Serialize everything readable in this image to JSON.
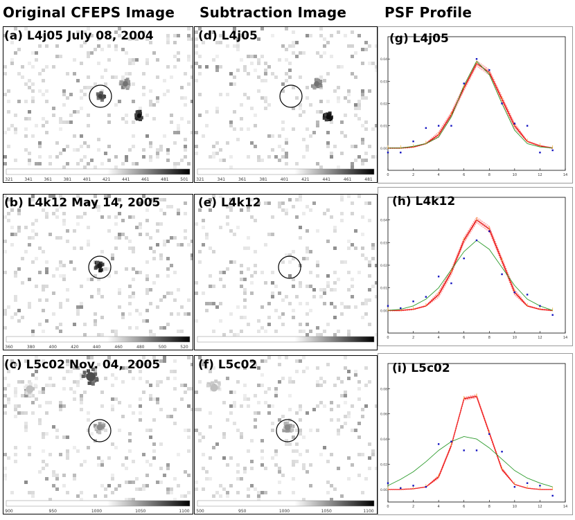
{
  "headers": {
    "original": "Original CFEPS Image",
    "subtraction": "Subtraction Image",
    "psf": "PSF Profile"
  },
  "panels": {
    "a": "(a) L4j05 July 08, 2004",
    "b": "(b) L4k12 May 14, 2005",
    "c": "(c) L5c02 Nov. 04, 2005",
    "d": "(d) L4j05",
    "e": "(e) L4k12",
    "f": "(f) L5c02",
    "g": "(g) L4j05",
    "h": "(h) L4k12",
    "i": "(i) L5c02"
  },
  "colorbars": {
    "a": [
      "321",
      "341",
      "361",
      "381",
      "401",
      "421",
      "441",
      "461",
      "481",
      "501"
    ],
    "b": [
      "360",
      "380",
      "400",
      "420",
      "440",
      "460",
      "480",
      "500",
      "520"
    ],
    "c": [
      "900",
      "950",
      "1000",
      "1050",
      "1100"
    ],
    "d": [
      "321",
      "341",
      "361",
      "381",
      "401",
      "421",
      "441",
      "461",
      "481"
    ],
    "f": [
      "500",
      "950",
      "1000",
      "1050",
      "1100"
    ]
  },
  "chart_data": [
    {
      "type": "line",
      "panel": "g",
      "xlim": [
        0,
        14
      ],
      "ylim": [
        -0.01,
        0.05
      ],
      "xticks": [
        "0",
        "2",
        "4",
        "6",
        "8",
        "10",
        "12",
        "14"
      ],
      "yticks": [
        "0.00",
        "0.01",
        "0.02",
        "0.03",
        "0.04"
      ],
      "x": [
        0,
        1,
        2,
        3,
        4,
        5,
        6,
        7,
        8,
        9,
        10,
        11,
        12,
        13
      ],
      "fit": [
        0.0,
        0.0,
        0.0005,
        0.002,
        0.006,
        0.015,
        0.027,
        0.038,
        0.034,
        0.022,
        0.01,
        0.003,
        0.001,
        0.0
      ],
      "model": [
        0.0,
        0.0,
        0.0008,
        0.002,
        0.005,
        0.014,
        0.028,
        0.039,
        0.033,
        0.02,
        0.008,
        0.002,
        0.0005,
        0.0
      ],
      "points": [
        [
          0,
          -0.002
        ],
        [
          1,
          -0.002
        ],
        [
          2,
          0.003
        ],
        [
          3,
          0.009
        ],
        [
          4,
          0.01
        ],
        [
          5,
          0.01
        ],
        [
          6,
          0.029
        ],
        [
          7,
          0.04
        ],
        [
          8,
          0.035
        ],
        [
          9,
          0.02
        ],
        [
          10,
          0.011
        ],
        [
          11,
          0.01
        ],
        [
          12,
          -0.002
        ],
        [
          13,
          -0.001
        ]
      ]
    },
    {
      "type": "line",
      "panel": "h",
      "xlim": [
        0,
        14
      ],
      "ylim": [
        -0.01,
        0.05
      ],
      "xticks": [
        "0",
        "2",
        "4",
        "6",
        "8",
        "10",
        "12",
        "14"
      ],
      "yticks": [
        "0.00",
        "0.01",
        "0.02",
        "0.03",
        "0.04"
      ],
      "x": [
        0,
        1,
        2,
        3,
        4,
        5,
        6,
        7,
        8,
        9,
        10,
        11,
        12,
        13
      ],
      "fit": [
        0.0,
        0.0,
        0.0005,
        0.002,
        0.007,
        0.017,
        0.031,
        0.04,
        0.036,
        0.022,
        0.008,
        0.002,
        0.0005,
        0.0
      ],
      "model": [
        0.0,
        0.0005,
        0.002,
        0.005,
        0.01,
        0.018,
        0.026,
        0.031,
        0.027,
        0.019,
        0.011,
        0.005,
        0.002,
        0.0
      ],
      "points": [
        [
          0,
          0.002
        ],
        [
          1,
          0.001
        ],
        [
          2,
          0.004
        ],
        [
          3,
          0.006
        ],
        [
          4,
          0.015
        ],
        [
          5,
          0.012
        ],
        [
          6,
          0.023
        ],
        [
          7,
          0.031
        ],
        [
          8,
          0.035
        ],
        [
          9,
          0.016
        ],
        [
          10,
          0.008
        ],
        [
          11,
          0.007
        ],
        [
          12,
          0.002
        ],
        [
          13,
          -0.002
        ]
      ]
    },
    {
      "type": "line",
      "panel": "i",
      "xlim": [
        0,
        14
      ],
      "ylim": [
        -0.01,
        0.1
      ],
      "xticks": [
        "0",
        "2",
        "4",
        "6",
        "8",
        "10",
        "12",
        "14"
      ],
      "yticks": [
        "0.00",
        "0.02",
        "0.04",
        "0.06",
        "0.08"
      ],
      "x": [
        0,
        1,
        2,
        3,
        4,
        5,
        6,
        7,
        8,
        9,
        10,
        11,
        12,
        13
      ],
      "fit": [
        0.0,
        0.0,
        0.0005,
        0.002,
        0.01,
        0.035,
        0.072,
        0.074,
        0.045,
        0.016,
        0.004,
        0.001,
        0.0,
        0.0
      ],
      "model": [
        0.003,
        0.008,
        0.014,
        0.022,
        0.031,
        0.038,
        0.042,
        0.04,
        0.033,
        0.024,
        0.015,
        0.009,
        0.005,
        0.002
      ],
      "points": [
        [
          0,
          0.005
        ],
        [
          1,
          0.001
        ],
        [
          2,
          0.003
        ],
        [
          3,
          0.002
        ],
        [
          4,
          0.036
        ],
        [
          5,
          0.038
        ],
        [
          6,
          0.031
        ],
        [
          7,
          0.031
        ],
        [
          8,
          0.044
        ],
        [
          9,
          0.03
        ],
        [
          10,
          0.002
        ],
        [
          11,
          0.005
        ],
        [
          12,
          0.003
        ],
        [
          13,
          -0.005
        ]
      ]
    }
  ]
}
